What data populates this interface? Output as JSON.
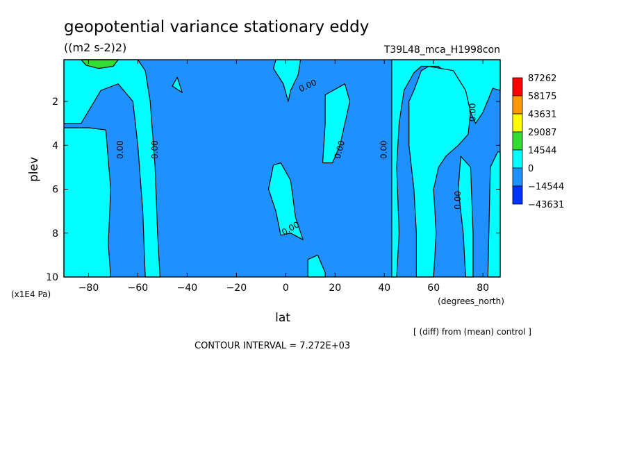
{
  "chart_data": {
    "type": "heatmap",
    "title": "geopotential variance stationary eddy",
    "units": "((m2 s-2)2)",
    "experiment": "T39L48_mca_H1998con",
    "xlabel": "lat",
    "x_units": "(degrees_north)",
    "ylabel": "plev",
    "y_units": "(x1E4 Pa)",
    "xlim": [
      -90,
      87
    ],
    "ylim": [
      10,
      0.1
    ],
    "x_ticks": [
      -80,
      -60,
      -40,
      -20,
      0,
      20,
      40,
      60,
      80
    ],
    "y_ticks": [
      2,
      4,
      6,
      8,
      10
    ],
    "x_tick_labels": [
      "−80",
      "−60",
      "−40",
      "−20",
      "0",
      "20",
      "40",
      "60",
      "80"
    ],
    "y_tick_labels": [
      "2",
      "4",
      "6",
      "8",
      "10"
    ],
    "note": "[ (diff) from (mean) control ]",
    "contour_interval_text": "CONTOUR INTERVAL = 7.272E+03",
    "contour_labels": [
      "0.00",
      "0.00",
      "0.00",
      "0.00",
      "0.00",
      "0.00",
      "0.00",
      "0.00"
    ],
    "colorbar": {
      "levels": [
        "87262",
        "58175",
        "43631",
        "29087",
        "14544",
        "0",
        "−14544",
        "−43631"
      ],
      "colors": [
        "#ff0000",
        "#ff9900",
        "#ffff00",
        "#33dd33",
        "#00ffff",
        "#1e90ff",
        "#0033ff"
      ]
    },
    "fill_colors": {
      "negative_small": "#1e90ff",
      "positive_small": "#00ffff",
      "positive_mid": "#33dd33",
      "negative_mid": "#0033ff"
    },
    "regions": [
      {
        "sign": "negative",
        "polygon": [
          [
            -90,
            10
          ],
          [
            -90,
            0.1
          ],
          [
            87,
            0.1
          ],
          [
            87,
            10
          ]
        ]
      },
      {
        "sign": "positive",
        "polygon": [
          [
            -90,
            0.1
          ],
          [
            -60,
            0.1
          ],
          [
            -57,
            0.6
          ],
          [
            -55,
            2
          ],
          [
            -53,
            5
          ],
          [
            -52,
            8
          ],
          [
            -51,
            10
          ],
          [
            -57,
            10
          ],
          [
            -58,
            7
          ],
          [
            -60,
            4
          ],
          [
            -62,
            2
          ],
          [
            -68,
            1.2
          ],
          [
            -75,
            1.5
          ],
          [
            -83,
            3
          ],
          [
            -90,
            3
          ]
        ]
      },
      {
        "sign": "positive",
        "polygon": [
          [
            -90,
            3.2
          ],
          [
            -80,
            3.2
          ],
          [
            -73,
            3.3
          ],
          [
            -71,
            6
          ],
          [
            -72,
            8.5
          ],
          [
            -71,
            10
          ],
          [
            -90,
            10
          ]
        ]
      },
      {
        "sign": "positive",
        "polygon": [
          [
            -44,
            0.9
          ],
          [
            -42,
            1.6
          ],
          [
            -46,
            1.3
          ]
        ]
      },
      {
        "sign": "positive",
        "polygon": [
          [
            -4,
            0.1
          ],
          [
            6,
            0.1
          ],
          [
            5,
            0.8
          ],
          [
            2,
            1.5
          ],
          [
            1,
            2
          ],
          [
            -1,
            1.2
          ],
          [
            -5,
            0.5
          ]
        ]
      },
      {
        "sign": "positive",
        "polygon": [
          [
            -5,
            4.9
          ],
          [
            -2,
            4.8
          ],
          [
            2,
            5.6
          ],
          [
            4,
            7.3
          ],
          [
            7,
            8.3
          ],
          [
            2,
            8
          ],
          [
            -2,
            8.1
          ],
          [
            -4,
            7
          ],
          [
            -7,
            6
          ]
        ]
      },
      {
        "sign": "positive",
        "polygon": [
          [
            16,
            1.7
          ],
          [
            24,
            1.2
          ],
          [
            26,
            2
          ],
          [
            24,
            3
          ],
          [
            22,
            4
          ],
          [
            19,
            4.8
          ],
          [
            15,
            4.8
          ],
          [
            16,
            3
          ]
        ]
      },
      {
        "sign": "positive",
        "polygon": [
          [
            9,
            10
          ],
          [
            9,
            9.2
          ],
          [
            13,
            9
          ],
          [
            16,
            9.8
          ],
          [
            16,
            10
          ]
        ]
      },
      {
        "sign": "positive",
        "polygon": [
          [
            43,
            0.1
          ],
          [
            87,
            0.1
          ],
          [
            87,
            1.5
          ],
          [
            84,
            1.4
          ],
          [
            80,
            2.5
          ],
          [
            77,
            3
          ],
          [
            75,
            2.5
          ],
          [
            72,
            1.5
          ],
          [
            68,
            0.9
          ],
          [
            64,
            0.6
          ],
          [
            62,
            0.4
          ],
          [
            55,
            0.4
          ],
          [
            52,
            0.7
          ],
          [
            48,
            1.5
          ],
          [
            46,
            3
          ],
          [
            45,
            5
          ],
          [
            46,
            8
          ],
          [
            45,
            10
          ],
          [
            43,
            10
          ]
        ]
      },
      {
        "sign": "positive",
        "polygon": [
          [
            58,
            0.4
          ],
          [
            68,
            0.6
          ],
          [
            73,
            1.5
          ],
          [
            75,
            2.5
          ],
          [
            74,
            3.5
          ],
          [
            70,
            4
          ],
          [
            65,
            4.5
          ],
          [
            62,
            5
          ],
          [
            60,
            6
          ],
          [
            61,
            8
          ],
          [
            60,
            10
          ],
          [
            53,
            10
          ],
          [
            53,
            8
          ],
          [
            52,
            6
          ],
          [
            50,
            4
          ],
          [
            50,
            2
          ],
          [
            52,
            1.5
          ],
          [
            55,
            0.6
          ]
        ]
      },
      {
        "sign": "positive",
        "polygon": [
          [
            71,
            4.5
          ],
          [
            75,
            5
          ],
          [
            76,
            8
          ],
          [
            76,
            10
          ],
          [
            73,
            10
          ],
          [
            72,
            8
          ],
          [
            70,
            6
          ]
        ]
      },
      {
        "sign": "positive",
        "polygon": [
          [
            82,
            10
          ],
          [
            83,
            5
          ],
          [
            86,
            4.3
          ],
          [
            87,
            4.3
          ],
          [
            87,
            10
          ]
        ]
      },
      {
        "sign": "positive_mid",
        "polygon": [
          [
            -83,
            0.1
          ],
          [
            -68,
            0.1
          ],
          [
            -70,
            0.4
          ],
          [
            -76,
            0.5
          ],
          [
            -81,
            0.35
          ]
        ]
      }
    ]
  }
}
